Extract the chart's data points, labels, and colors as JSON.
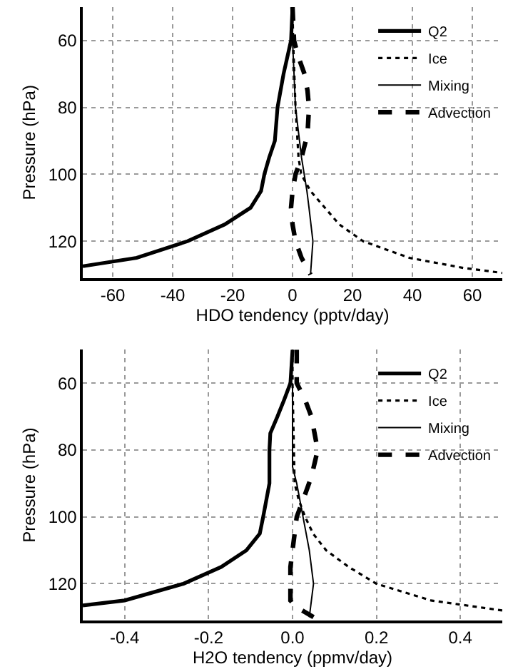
{
  "chart_data": [
    {
      "type": "line",
      "xlabel": "HDO tendency (pptv/day)",
      "ylabel": "Pressure (hPa)",
      "xlim": [
        -70,
        70
      ],
      "xticks": [
        -60,
        -40,
        -20,
        0,
        20,
        40,
        60
      ],
      "ylim": [
        131,
        50
      ],
      "yticks": [
        60,
        80,
        100,
        120
      ],
      "grid": true,
      "legend": "top right",
      "series": [
        {
          "name": "Q2",
          "color": "#000000",
          "line_style": "solid",
          "x": [
            0,
            -0.5,
            -3,
            -5,
            -5.9,
            -7.8,
            -9.4,
            -10.5,
            -14,
            -22.6,
            -35,
            -52,
            -70
          ],
          "values": [
            50,
            60,
            70,
            80,
            90,
            95,
            100,
            105,
            110,
            115,
            120,
            125,
            127.5
          ]
        },
        {
          "name": "Ice",
          "color": "#000000",
          "line_style": "dotted",
          "x": [
            0,
            0.2,
            1,
            2,
            2.9,
            6,
            10.8,
            15.6,
            23.5,
            39,
            57,
            70
          ],
          "values": [
            50,
            60,
            80,
            95,
            100,
            105,
            110,
            115,
            120,
            125,
            128,
            129.5
          ]
        },
        {
          "name": "Mixing",
          "color": "#000000",
          "line_style": "solid",
          "x": [
            0,
            0.5,
            1,
            3,
            4.8,
            5.5,
            6.8,
            6
          ],
          "values": [
            60,
            70,
            80,
            95,
            105,
            110,
            120,
            130
          ]
        },
        {
          "name": "Advection",
          "color": "#000000",
          "line_style": "dashed",
          "x": [
            0,
            0.5,
            2,
            4,
            5,
            5.5,
            5,
            3,
            1,
            0,
            -0.5,
            0,
            1,
            3,
            6
          ],
          "values": [
            50,
            60,
            65,
            70,
            75,
            80,
            88,
            95,
            100,
            105,
            110,
            115,
            120,
            125,
            130
          ]
        }
      ]
    },
    {
      "type": "line",
      "xlabel": "H2O tendency (ppmv/day)",
      "ylabel": "Pressure (hPa)",
      "xlim": [
        -0.5,
        0.5
      ],
      "xticks": [
        -0.4,
        -0.2,
        {
          "value": 0,
          "label": "0.0"
        },
        0.2,
        0.4
      ],
      "ylim": [
        131,
        50
      ],
      "yticks": [
        60,
        80,
        100,
        120
      ],
      "grid": true,
      "legend": "top right",
      "series": [
        {
          "name": "Q2",
          "color": "#000000",
          "line_style": "solid",
          "x": [
            0,
            -0.005,
            -0.02,
            -0.036,
            -0.053,
            -0.055,
            -0.055,
            -0.07,
            -0.078,
            -0.11,
            -0.17,
            -0.26,
            -0.4,
            -0.5
          ],
          "values": [
            50,
            60,
            65,
            70,
            75,
            80,
            90,
            100,
            105,
            110,
            115,
            120,
            125,
            126.5
          ]
        },
        {
          "name": "Ice",
          "color": "#000000",
          "line_style": "dotted",
          "x": [
            0,
            0,
            0.005,
            0.015,
            0.03,
            0.049,
            0.08,
            0.134,
            0.2,
            0.33,
            0.5
          ],
          "values": [
            50,
            60,
            90,
            95,
            100,
            105,
            110,
            115,
            120,
            125,
            128
          ]
        },
        {
          "name": "Mixing",
          "color": "#000000",
          "line_style": "solid",
          "x": [
            0,
            0,
            0.01,
            0.025,
            0.04,
            0.05,
            0.04
          ],
          "values": [
            60,
            85,
            90,
            100,
            110,
            120,
            130
          ]
        },
        {
          "name": "Advection",
          "color": "#000000",
          "line_style": "dashed",
          "x": [
            0.01,
            0.01,
            0.03,
            0.045,
            0.06,
            0.045,
            0.025,
            0.01,
            0,
            -0.005,
            -0.005,
            0.01,
            0.05
          ],
          "values": [
            50,
            60,
            65,
            70,
            80,
            88,
            95,
            100,
            110,
            115,
            125,
            127,
            130
          ]
        }
      ]
    }
  ]
}
